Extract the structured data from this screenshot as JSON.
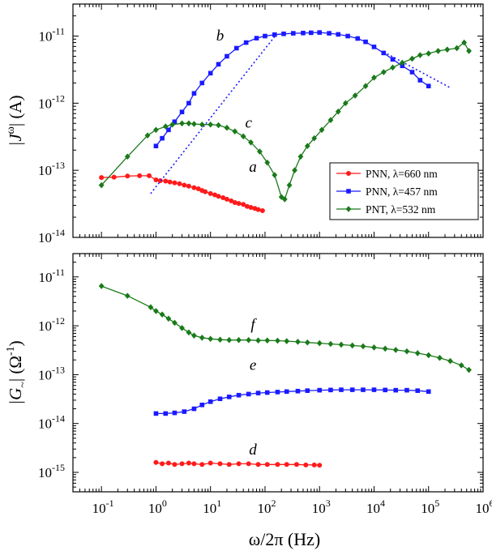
{
  "chart_data": [
    {
      "type": "line",
      "id": "top",
      "ylabel_main": "|J",
      "ylabel_sup": "ω",
      "ylabel_tail": "| (A)",
      "xscale": "log",
      "yscale": "log",
      "xlim": [
        0.03,
        1000000
      ],
      "ylim": [
        1e-14,
        3e-11
      ],
      "yticks": [
        {
          "v": 1e-14,
          "exp": "-14"
        },
        {
          "v": 1e-13,
          "exp": "-13"
        },
        {
          "v": 1e-12,
          "exp": "-12"
        },
        {
          "v": 1e-11,
          "exp": "-11"
        }
      ],
      "legend": {
        "position": "right-middle",
        "entries": [
          {
            "series": "a",
            "label": "PNN, λ=660 nm"
          },
          {
            "series": "b",
            "label": "PNN, λ=457 nm"
          },
          {
            "series": "c",
            "label": "PNT, λ=532 nm"
          }
        ]
      },
      "annotations": [
        {
          "text": "a",
          "x": 60,
          "y": 9.5e-14
        },
        {
          "text": "b",
          "x": 15,
          "y": 8.6e-12
        },
        {
          "text": "c",
          "x": 50,
          "y": 4.3e-13
        }
      ],
      "series": [
        {
          "key": "a",
          "color": "#ff1a1a",
          "marker": "circle",
          "x": [
            0.1,
            0.17,
            0.3,
            0.5,
            0.75,
            1.0,
            1.2,
            1.5,
            1.8,
            2.2,
            2.7,
            3.3,
            4,
            5,
            6,
            7,
            8,
            10,
            12,
            14,
            17,
            20,
            24,
            28,
            33,
            40,
            47,
            55,
            65,
            75,
            90
          ],
          "y": [
            7.8e-14,
            7.9e-14,
            8.2e-14,
            8.3e-14,
            8.3e-14,
            7.2e-14,
            7e-14,
            6.9e-14,
            6.7e-14,
            6.5e-14,
            6.3e-14,
            6e-14,
            5.8e-14,
            5.5e-14,
            5.3e-14,
            5e-14,
            4.8e-14,
            4.5e-14,
            4.3e-14,
            4.1e-14,
            3.9e-14,
            3.7e-14,
            3.5e-14,
            3.3e-14,
            3.2e-14,
            3.1e-14,
            2.9e-14,
            2.8e-14,
            2.7e-14,
            2.6e-14,
            2.5e-14
          ]
        },
        {
          "key": "b",
          "color": "#1a1aff",
          "marker": "square",
          "x": [
            1.0,
            1.3,
            1.7,
            2.2,
            3,
            4,
            5,
            7,
            10,
            14,
            20,
            30,
            45,
            70,
            100,
            150,
            220,
            330,
            500,
            700,
            1000,
            1500,
            2200,
            3300,
            5000,
            7000,
            10000,
            15000,
            22000,
            33000,
            50000,
            70000,
            100000
          ],
          "y": [
            2.3e-13,
            3e-13,
            4e-13,
            5.3e-13,
            7.4e-13,
            1e-12,
            1.4e-12,
            2e-12,
            2.8e-12,
            3.8e-12,
            5e-12,
            6.6e-12,
            8e-12,
            9.3e-12,
            1e-11,
            1.05e-11,
            1.08e-11,
            1.1e-11,
            1.11e-11,
            1.12e-11,
            1.13e-11,
            1.1e-11,
            1.06e-11,
            1e-11,
            9.2e-12,
            8.2e-12,
            6.9e-12,
            5.6e-12,
            4.5e-12,
            3.6e-12,
            2.9e-12,
            2.2e-12,
            1.8e-12
          ]
        },
        {
          "key": "b-fit",
          "color": "#1a1aff",
          "dotted": true,
          "x": [
            0.8,
            150
          ],
          "y": [
            4.5e-14,
            9.8e-12
          ]
        },
        {
          "key": "b-fit-tail",
          "color": "#1a1aff",
          "dotted": true,
          "x": [
            15000,
            250000
          ],
          "y": [
            5.8e-12,
            1.7e-12
          ]
        },
        {
          "key": "c",
          "color": "#1a7a1a",
          "marker": "diamond",
          "x": [
            0.1,
            0.3,
            0.7,
            1.0,
            1.5,
            2,
            3,
            4,
            5,
            7,
            10,
            14,
            20,
            28,
            40,
            55,
            80,
            110,
            150,
            200,
            230,
            280,
            350,
            450,
            600,
            800,
            1100,
            1600,
            2200,
            3000,
            4500,
            7000,
            10000,
            15000,
            22000,
            33000,
            50000,
            70000,
            100000,
            150000,
            220000,
            330000,
            450000,
            550000
          ],
          "y": [
            6e-14,
            1.6e-13,
            3.3e-13,
            4e-13,
            4.5e-13,
            4.8e-13,
            5e-13,
            5e-13,
            4.9e-13,
            4.8e-13,
            4.8e-13,
            4.7e-13,
            4.3e-13,
            3.8e-13,
            3.2e-13,
            2.6e-13,
            1.9e-13,
            1.3e-13,
            8.5e-14,
            4e-14,
            3.7e-14,
            6e-14,
            1e-13,
            1.6e-13,
            2.3e-13,
            3e-13,
            4e-13,
            5.6e-13,
            7.5e-13,
            1e-12,
            1.3e-12,
            1.8e-12,
            2.4e-12,
            2.9e-12,
            3.4e-12,
            4e-12,
            4.6e-12,
            5.2e-12,
            5.5e-12,
            6e-12,
            6.3e-12,
            6.6e-12,
            8e-12,
            6e-12
          ]
        }
      ]
    },
    {
      "type": "line",
      "id": "bottom",
      "ylabel_main": "|G",
      "ylabel_sub": "~",
      "ylabel_tail": "| (Ω",
      "ylabel_sup": "-1",
      "ylabel_close": ")",
      "xlabel": "ω/2π (Hz)",
      "xscale": "log",
      "yscale": "log",
      "xlim": [
        0.03,
        1000000
      ],
      "ylim": [
        4e-16,
        3e-11
      ],
      "xticks": [
        {
          "v": 0.1,
          "exp": "-1"
        },
        {
          "v": 1,
          "exp": "0"
        },
        {
          "v": 10,
          "exp": "1"
        },
        {
          "v": 100,
          "exp": "2"
        },
        {
          "v": 1000,
          "exp": "3"
        },
        {
          "v": 10000,
          "exp": "4"
        },
        {
          "v": 100000,
          "exp": "5"
        },
        {
          "v": 1000000,
          "exp": "6"
        }
      ],
      "yticks": [
        {
          "v": 1e-15,
          "exp": "-15"
        },
        {
          "v": 1e-14,
          "exp": "-14"
        },
        {
          "v": 1e-13,
          "exp": "-13"
        },
        {
          "v": 1e-12,
          "exp": "-12"
        },
        {
          "v": 1e-11,
          "exp": "-11"
        }
      ],
      "annotations": [
        {
          "text": "d",
          "x": 60,
          "y": 2.3e-15
        },
        {
          "text": "e",
          "x": 60,
          "y": 1.25e-13
        },
        {
          "text": "f",
          "x": 60,
          "y": 8.5e-13
        }
      ],
      "series": [
        {
          "key": "d",
          "color": "#ff1a1a",
          "marker": "circle",
          "x": [
            1.0,
            1.3,
            1.7,
            2.2,
            3,
            4,
            5,
            7,
            10,
            15,
            22,
            33,
            50,
            75,
            110,
            170,
            250,
            380,
            560,
            800,
            1000
          ],
          "y": [
            1.6e-15,
            1.5e-15,
            1.55e-15,
            1.45e-15,
            1.5e-15,
            1.55e-15,
            1.5e-15,
            1.45e-15,
            1.55e-15,
            1.5e-15,
            1.45e-15,
            1.5e-15,
            1.5e-15,
            1.45e-15,
            1.45e-15,
            1.45e-15,
            1.45e-15,
            1.45e-15,
            1.42e-15,
            1.42e-15,
            1.4e-15
          ]
        },
        {
          "key": "e",
          "color": "#1a1aff",
          "marker": "square",
          "x": [
            1.0,
            1.5,
            2.2,
            3.3,
            5,
            7,
            10,
            15,
            22,
            33,
            50,
            75,
            110,
            170,
            250,
            400,
            600,
            1000,
            1600,
            2500,
            4000,
            6300,
            10000,
            16000,
            25000,
            40000,
            63000,
            100000
          ],
          "y": [
            1.6e-14,
            1.6e-14,
            1.65e-14,
            1.75e-14,
            2e-14,
            2.4e-14,
            2.8e-14,
            3.2e-14,
            3.5e-14,
            3.8e-14,
            4e-14,
            4.2e-14,
            4.3e-14,
            4.4e-14,
            4.5e-14,
            4.6e-14,
            4.7e-14,
            4.8e-14,
            4.85e-14,
            4.9e-14,
            4.9e-14,
            4.9e-14,
            4.9e-14,
            4.85e-14,
            4.8e-14,
            4.8e-14,
            4.7e-14,
            4.5e-14
          ]
        },
        {
          "key": "f",
          "color": "#1a7a1a",
          "marker": "diamond",
          "x": [
            0.1,
            0.3,
            0.8,
            1.0,
            1.3,
            1.7,
            2.2,
            3,
            4,
            5,
            7,
            10,
            15,
            22,
            33,
            50,
            75,
            110,
            170,
            250,
            400,
            600,
            1000,
            1600,
            2500,
            4000,
            6300,
            10000,
            16000,
            25000,
            40000,
            63000,
            100000,
            160000,
            250000,
            400000,
            550000
          ],
          "y": [
            6.5e-12,
            4.1e-12,
            2.4e-12,
            2e-12,
            1.7e-12,
            1.4e-12,
            1.15e-12,
            9e-13,
            7.3e-13,
            6.3e-13,
            5.7e-13,
            5.4e-13,
            5.2e-13,
            5.1e-13,
            5.1e-13,
            5.1e-13,
            5e-13,
            5e-13,
            4.95e-13,
            4.85e-13,
            4.7e-13,
            4.55e-13,
            4.4e-13,
            4.25e-13,
            4.1e-13,
            3.95e-13,
            3.8e-13,
            3.6e-13,
            3.4e-13,
            3.2e-13,
            3e-13,
            2.75e-13,
            2.5e-13,
            2.2e-13,
            1.9e-13,
            1.55e-13,
            1.25e-13
          ]
        }
      ]
    }
  ]
}
